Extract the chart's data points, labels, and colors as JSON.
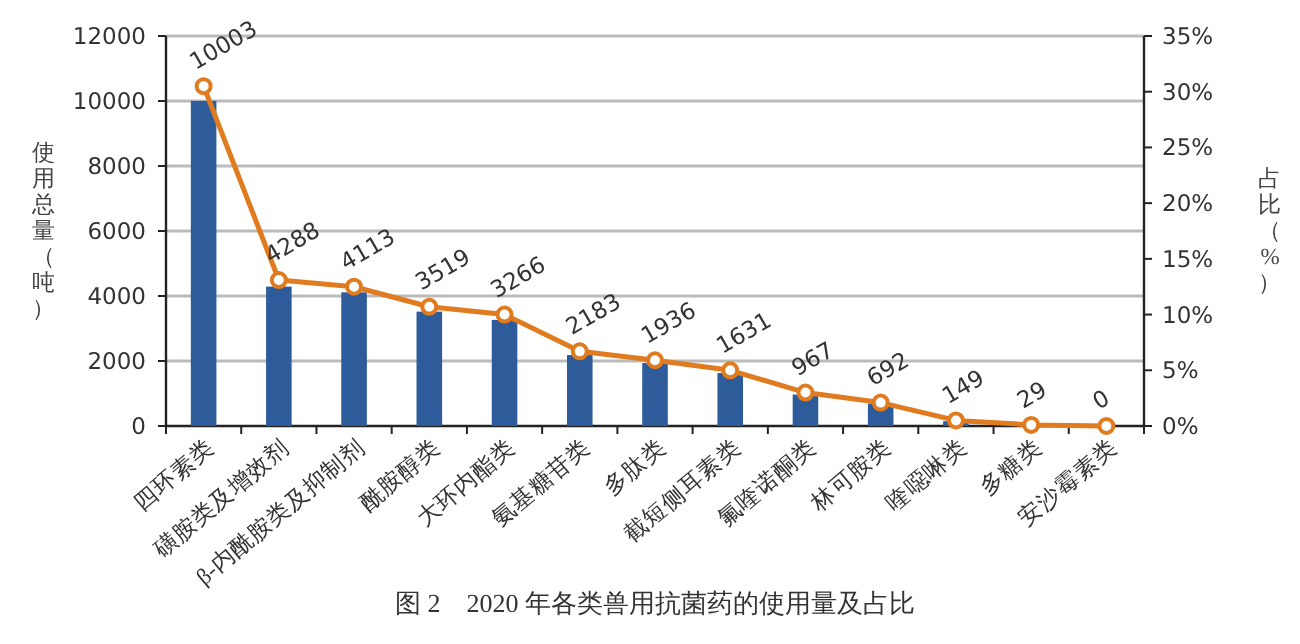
{
  "chart_data": {
    "type": "bar",
    "title": "图 2　2020 年各类兽用抗菌药的使用量及占比",
    "ylabel": "使用总量（吨）",
    "y2label": "占比（%）",
    "categories": [
      "四环素类",
      "磺胺类及增效剂",
      "β-内酰胺类及抑制剂",
      "酰胺醇类",
      "大环内酯类",
      "氨基糖苷类",
      "多肽类",
      "截短侧耳素类",
      "氟喹诺酮类",
      "林可胺类",
      "喹噁啉类",
      "多糖类",
      "安沙霉素类"
    ],
    "series": [
      {
        "color": "#2e5c9a",
        "values": [
          10003,
          4288,
          4113,
          3519,
          3266,
          2183,
          1936,
          1631,
          967,
          692,
          149,
          29,
          0
        ],
        "value_labels": [
          "10003",
          "4288",
          "4113",
          "3519",
          "3266",
          "2183",
          "1936",
          "1631",
          "967",
          "692",
          "149",
          "29",
          "0"
        ]
      },
      {
        "type": "line",
        "axis": "y2",
        "color": "#e07b1f",
        "marker": "circle",
        "values": [
          30.5,
          13.1,
          12.5,
          10.7,
          10.0,
          6.7,
          5.9,
          5.0,
          3.0,
          2.1,
          0.5,
          0.1,
          0
        ]
      }
    ],
    "ylim": [
      0,
      12000
    ],
    "yticks": [
      0,
      2000,
      4000,
      6000,
      8000,
      10000,
      12000
    ],
    "y2lim": [
      0,
      35
    ],
    "y2ticks": [
      {
        "value": 0,
        "label": "0%"
      },
      {
        "value": 5,
        "label": "5%"
      },
      {
        "value": 10,
        "label": "10%"
      },
      {
        "value": 15,
        "label": "15%"
      },
      {
        "value": 20,
        "label": "20%"
      },
      {
        "value": 25,
        "label": "25%"
      },
      {
        "value": 30,
        "label": "30%"
      },
      {
        "value": 35,
        "label": "35%"
      }
    ],
    "grid": "y"
  }
}
